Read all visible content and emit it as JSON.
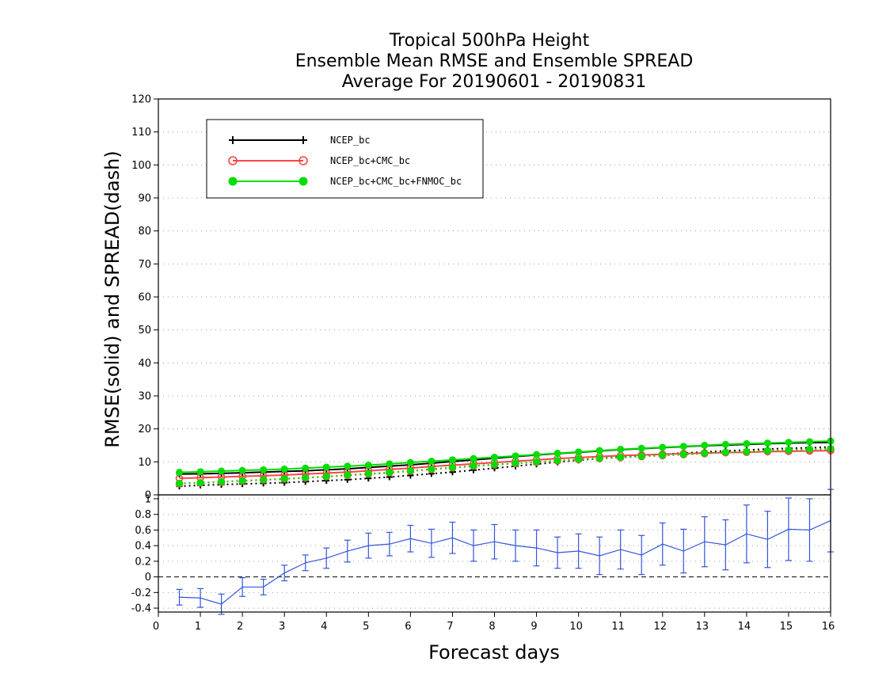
{
  "chart_data": {
    "type": "line",
    "title": [
      "Tropical 500hPa Height",
      "Ensemble Mean RMSE and Ensemble SPREAD",
      "Average For 20190601 - 20190831"
    ],
    "xlabel": "Forecast days",
    "ylabel": "RMSE(solid) and SPREAD(dash)",
    "xlim": [
      0,
      16
    ],
    "xticks": [
      0,
      1,
      2,
      3,
      4,
      5,
      6,
      7,
      8,
      9,
      10,
      11,
      12,
      13,
      14,
      15,
      16
    ],
    "x": [
      0.5,
      1,
      1.5,
      2,
      2.5,
      3,
      3.5,
      4,
      4.5,
      5,
      5.5,
      6,
      6.5,
      7,
      7.5,
      8,
      8.5,
      9,
      9.5,
      10,
      10.5,
      11,
      11.5,
      12,
      12.5,
      13,
      13.5,
      14,
      14.5,
      15,
      15.5,
      16
    ],
    "top_panel": {
      "ylim": [
        0,
        120
      ],
      "yticks": [
        0,
        10,
        20,
        30,
        40,
        50,
        60,
        70,
        80,
        90,
        100,
        110,
        120
      ],
      "grid": "dotted",
      "legend_placement": "top-left",
      "series": [
        {
          "name": "NCEP_bc",
          "color": "#000000",
          "marker": "plus",
          "rmse": [
            6.3,
            6.4,
            6.5,
            6.7,
            6.9,
            7.1,
            7.3,
            7.6,
            7.9,
            8.3,
            8.7,
            9.1,
            9.6,
            10.1,
            10.6,
            11.1,
            11.6,
            12.1,
            12.5,
            12.9,
            13.3,
            13.7,
            14.0,
            14.3,
            14.6,
            14.9,
            15.1,
            15.3,
            15.5,
            15.7,
            15.8,
            15.9
          ],
          "spread": [
            2.6,
            2.9,
            3.1,
            3.3,
            3.5,
            3.7,
            4.0,
            4.3,
            4.6,
            5.0,
            5.4,
            5.9,
            6.4,
            6.9,
            7.5,
            8.1,
            8.7,
            9.3,
            9.9,
            10.5,
            11.0,
            11.5,
            11.9,
            12.3,
            12.7,
            13.0,
            13.3,
            13.6,
            13.9,
            14.1,
            14.3,
            14.5
          ]
        },
        {
          "name": "NCEP_bc+CMC_bc",
          "color": "#ff4444",
          "marker": "open-circle",
          "rmse": [
            5.0,
            5.2,
            5.4,
            5.6,
            5.8,
            6.0,
            6.3,
            6.6,
            6.9,
            7.3,
            7.7,
            8.1,
            8.6,
            9.0,
            9.4,
            9.8,
            10.2,
            10.6,
            11.0,
            11.3,
            11.6,
            11.9,
            12.1,
            12.3,
            12.5,
            12.7,
            12.8,
            12.9,
            13.1,
            13.2,
            13.3,
            13.4
          ],
          "spread": [
            3.4,
            3.6,
            3.9,
            4.2,
            4.5,
            4.8,
            5.1,
            5.5,
            5.9,
            6.3,
            6.7,
            7.2,
            7.7,
            8.2,
            8.7,
            9.1,
            9.5,
            9.9,
            10.3,
            10.7,
            11.0,
            11.3,
            11.6,
            11.9,
            12.2,
            12.5,
            12.8,
            13.0,
            13.3,
            13.5,
            13.7,
            13.9
          ]
        },
        {
          "name": "NCEP_bc+CMC_bc+FNMOC_bc",
          "color": "#00dd00",
          "marker": "filled-circle",
          "rmse": [
            6.8,
            7.0,
            7.2,
            7.4,
            7.6,
            7.8,
            8.1,
            8.4,
            8.7,
            9.0,
            9.4,
            9.8,
            10.2,
            10.6,
            11.0,
            11.4,
            11.8,
            12.2,
            12.6,
            13.0,
            13.4,
            13.8,
            14.1,
            14.4,
            14.7,
            15.0,
            15.3,
            15.5,
            15.7,
            15.9,
            16.1,
            16.3
          ],
          "spread": [
            3.5,
            3.7,
            4.0,
            4.3,
            4.6,
            4.9,
            5.2,
            5.6,
            6.0,
            6.4,
            6.8,
            7.3,
            7.8,
            8.3,
            8.8,
            9.2,
            9.6,
            10.0,
            10.4,
            10.8,
            11.1,
            11.4,
            11.7,
            12.0,
            12.3,
            12.6,
            12.9,
            13.1,
            13.4,
            13.6,
            13.8,
            14.0
          ]
        }
      ]
    },
    "bottom_panel": {
      "ylim": [
        -0.45,
        1.05
      ],
      "yticks": [
        -0.4,
        -0.2,
        0,
        0.2,
        0.4,
        0.6,
        0.8,
        1
      ],
      "ytick_labels": [
        "-0.4",
        "-0.2",
        "0",
        "0.2",
        "0.4",
        "0.6",
        "0.8",
        "1"
      ],
      "grid": "dotted",
      "zero_line": "dashed",
      "color": "#3355dd",
      "values": [
        -0.26,
        -0.27,
        -0.35,
        -0.13,
        -0.13,
        0.05,
        0.18,
        0.24,
        0.33,
        0.4,
        0.42,
        0.49,
        0.43,
        0.5,
        0.4,
        0.45,
        0.4,
        0.37,
        0.31,
        0.33,
        0.27,
        0.35,
        0.28,
        0.42,
        0.33,
        0.45,
        0.41,
        0.55,
        0.48,
        0.61,
        0.6,
        0.72
      ],
      "error": [
        0.1,
        0.12,
        0.13,
        0.12,
        0.1,
        0.1,
        0.1,
        0.13,
        0.14,
        0.16,
        0.15,
        0.17,
        0.18,
        0.2,
        0.2,
        0.22,
        0.2,
        0.23,
        0.2,
        0.22,
        0.24,
        0.25,
        0.25,
        0.27,
        0.28,
        0.32,
        0.32,
        0.37,
        0.36,
        0.4,
        0.4,
        0.4
      ]
    }
  }
}
